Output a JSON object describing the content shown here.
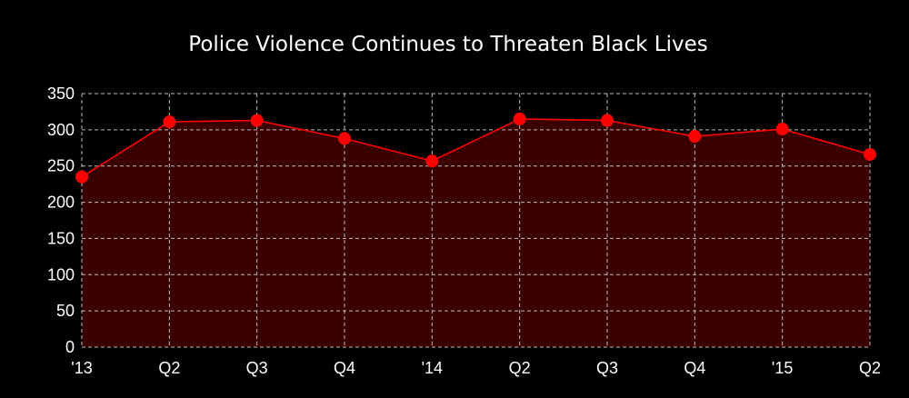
{
  "chart_data": {
    "type": "area",
    "title": "Police Violence Continues to Threaten Black Lives",
    "xlabel": "",
    "ylabel": "",
    "categories": [
      "'13",
      "Q2",
      "Q3",
      "Q4",
      "'14",
      "Q2",
      "Q3",
      "Q4",
      "'15",
      "Q2"
    ],
    "series": [
      {
        "values": [
          235,
          311,
          313,
          288,
          257,
          315,
          313,
          291,
          301,
          266
        ]
      }
    ],
    "ylim": [
      0,
      350
    ],
    "yticks": [
      0,
      50,
      100,
      150,
      200,
      250,
      300,
      350
    ],
    "grid": true,
    "legend": "none",
    "colors": {
      "background": "#000000",
      "line": "#ff0000",
      "marker": "#ff0000",
      "fill": "#3a0000",
      "grid": "#bbbbbb",
      "text": "#ffffff"
    }
  }
}
